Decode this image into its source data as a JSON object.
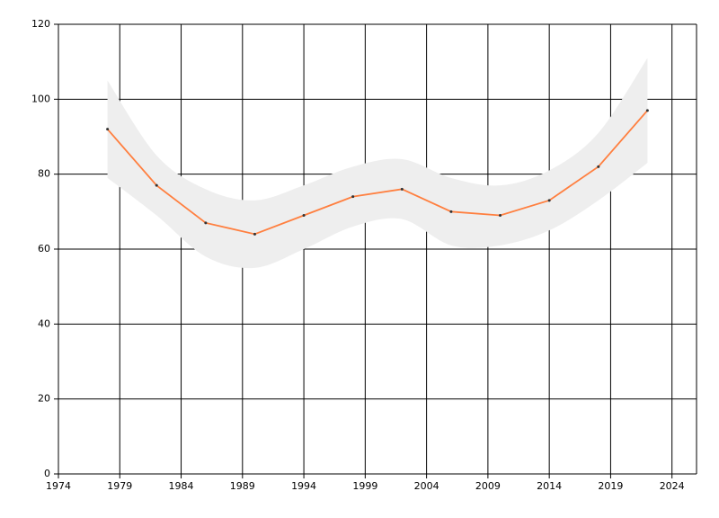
{
  "chart_data": {
    "type": "line",
    "x": [
      1978,
      1982,
      1986,
      1990,
      1994,
      1998,
      2002,
      2006,
      2010,
      2014,
      2018,
      2022
    ],
    "series": [
      {
        "color": "#ff7f3f",
        "values": [
          92,
          77,
          67,
          64,
          69,
          74,
          76,
          70,
          69,
          73,
          82,
          97
        ]
      }
    ],
    "band": {
      "color": "#eeeeee",
      "upper": [
        105,
        85,
        76,
        73,
        77,
        82,
        84,
        79,
        77,
        81,
        91,
        111
      ],
      "lower": [
        79,
        69,
        58,
        55,
        60,
        66,
        68,
        61,
        61,
        65,
        73,
        83
      ]
    },
    "marker_color": "#333333",
    "xlim": [
      1974,
      2026
    ],
    "xticks": [
      1974,
      1979,
      1984,
      1989,
      1994,
      1999,
      2004,
      2009,
      2014,
      2019,
      2024
    ],
    "ylim": [
      0,
      120
    ],
    "yticks": [
      0,
      20,
      40,
      60,
      80,
      100,
      120
    ],
    "grid": true
  }
}
